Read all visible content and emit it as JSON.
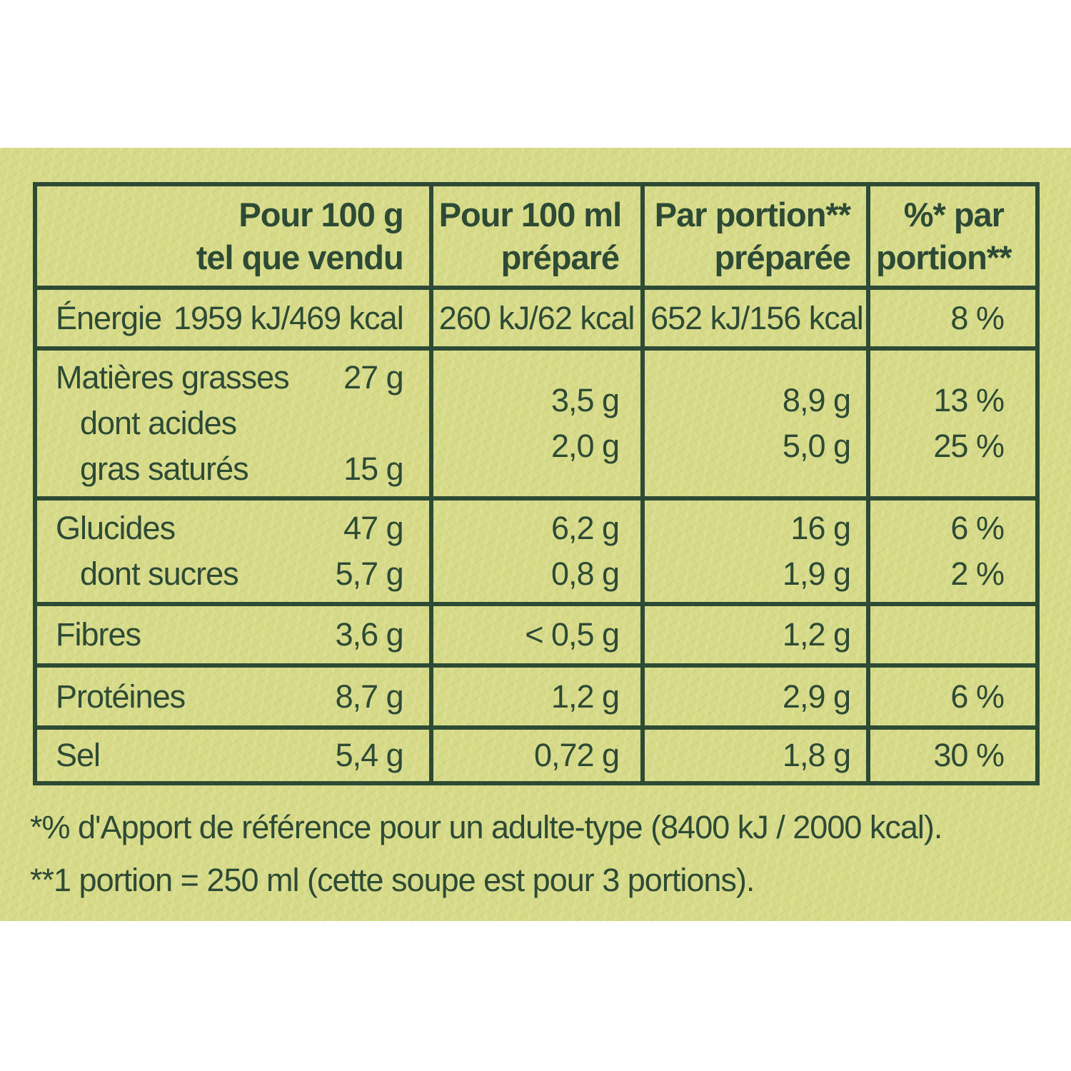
{
  "panel": {
    "background_color": "#d6da87",
    "ink_color": "#2d4a35"
  },
  "table": {
    "header": {
      "per_100g": {
        "line1": "Pour 100 g",
        "line2": "tel que vendu"
      },
      "per_100ml": {
        "line1": "Pour 100 ml",
        "line2": "préparé"
      },
      "per_portion": {
        "line1": "Par portion**",
        "line2": "préparée"
      },
      "pct_portion": {
        "line1": "%* par",
        "line2": "portion**"
      }
    },
    "rows": [
      {
        "name": "energie",
        "lines": [
          {
            "label": "Énergie",
            "per_100g": "1959 kJ/469 kcal",
            "per_100ml": "260 kJ/62 kcal",
            "per_portion": "652 kJ/156 kcal",
            "pct": "8 %"
          }
        ]
      },
      {
        "name": "matieres-grasses",
        "lines": [
          {
            "label": "Matières grasses",
            "per_100g": "27 g",
            "per_100ml": "3,5 g",
            "per_portion": "8,9 g",
            "pct": "13 %"
          },
          {
            "label": "dont acides",
            "per_100g": "",
            "per_100ml": "",
            "per_portion": "",
            "pct": ""
          },
          {
            "label": "gras saturés",
            "per_100g": "15 g",
            "per_100ml": "2,0 g",
            "per_portion": "5,0 g",
            "pct": "25 %"
          }
        ]
      },
      {
        "name": "glucides",
        "lines": [
          {
            "label": "Glucides",
            "per_100g": "47 g",
            "per_100ml": "6,2 g",
            "per_portion": "16 g",
            "pct": "6 %"
          },
          {
            "label": "dont sucres",
            "per_100g": "5,7 g",
            "per_100ml": "0,8 g",
            "per_portion": "1,9 g",
            "pct": "2 %"
          }
        ]
      },
      {
        "name": "fibres",
        "lines": [
          {
            "label": "Fibres",
            "per_100g": "3,6 g",
            "per_100ml": "< 0,5 g",
            "per_portion": "1,2 g",
            "pct": ""
          }
        ]
      },
      {
        "name": "proteines",
        "lines": [
          {
            "label": "Protéines",
            "per_100g": "8,7 g",
            "per_100ml": "1,2 g",
            "per_portion": "2,9 g",
            "pct": "6 %"
          }
        ]
      },
      {
        "name": "sel",
        "lines": [
          {
            "label": "Sel",
            "per_100g": "5,4 g",
            "per_100ml": "0,72 g",
            "per_portion": "1,8 g",
            "pct": "30 %"
          }
        ]
      }
    ]
  },
  "footnotes": [
    "*% d'Apport de référence pour un adulte-type (8400 kJ / 2000 kcal).",
    "**1 portion = 250 ml (cette soupe est pour 3 portions)."
  ]
}
